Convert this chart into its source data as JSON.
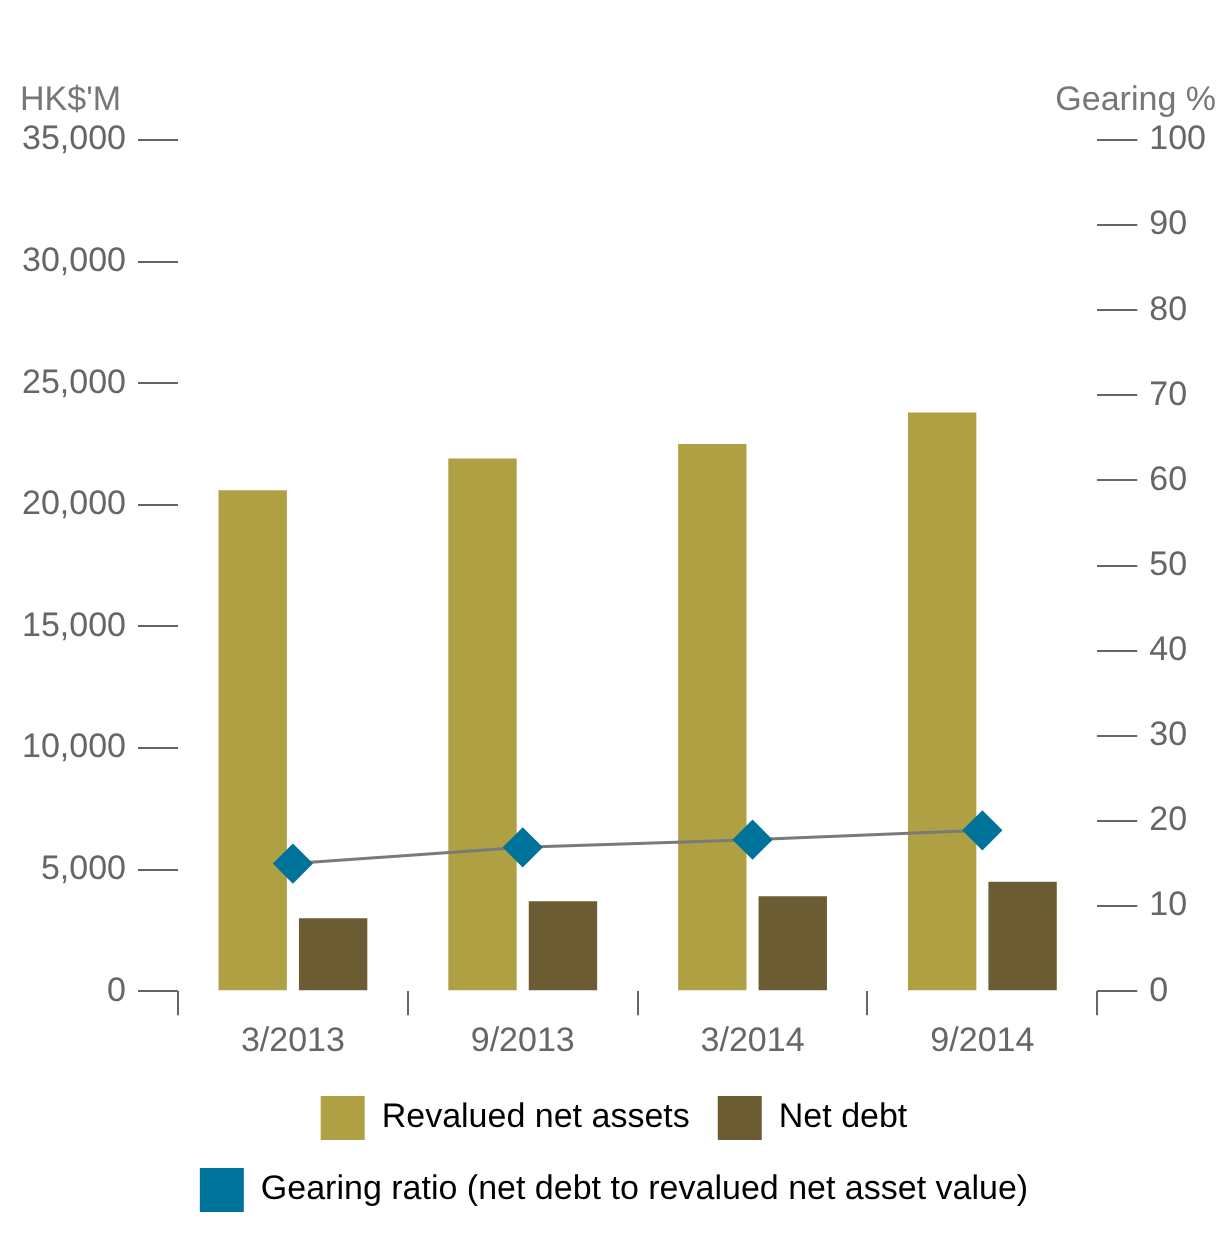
{
  "chart_data": {
    "type": "bar",
    "ylabel": "HK$'M",
    "y2label": "Gearing %",
    "categories": [
      "3/2013",
      "9/2013",
      "3/2014",
      "9/2014"
    ],
    "series": [
      {
        "name": "Revalued net assets",
        "color": "#b0a044",
        "values": [
          20600,
          21900,
          22500,
          23800
        ]
      },
      {
        "name": "Net debt",
        "color": "#6b5c34",
        "values": [
          3000,
          3700,
          3900,
          4500
        ]
      },
      {
        "name": "Gearing ratio (net debt to revalued net asset value)",
        "type": "line",
        "axis": "y2",
        "color": "#00739a",
        "values": [
          15.0,
          16.9,
          17.8,
          18.9
        ]
      }
    ],
    "ylim": [
      0,
      35000
    ],
    "yticks": [
      {
        "value": 0,
        "label": "0"
      },
      {
        "value": 5000,
        "label": "5,000"
      },
      {
        "value": 10000,
        "label": "10,000"
      },
      {
        "value": 15000,
        "label": "15,000"
      },
      {
        "value": 20000,
        "label": "20,000"
      },
      {
        "value": 25000,
        "label": "25,000"
      },
      {
        "value": 30000,
        "label": "30,000"
      },
      {
        "value": 35000,
        "label": "35,000"
      }
    ],
    "y2lim": [
      0,
      100
    ],
    "y2ticks": [
      0,
      10,
      20,
      30,
      40,
      50,
      60,
      70,
      80,
      90,
      100
    ],
    "grid": false,
    "legend": "bottom",
    "marker": "diamond",
    "line_style": "solid"
  }
}
